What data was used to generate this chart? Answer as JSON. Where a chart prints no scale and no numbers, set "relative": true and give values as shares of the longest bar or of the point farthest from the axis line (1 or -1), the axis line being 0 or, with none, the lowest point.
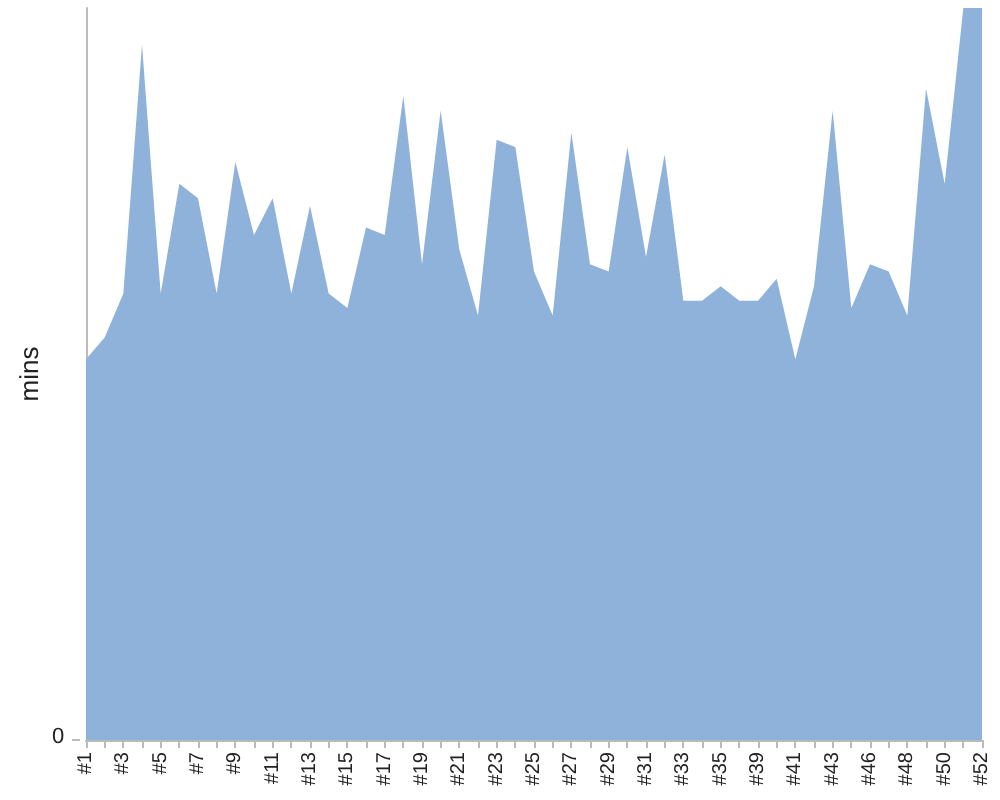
{
  "chart_data": {
    "type": "area",
    "relative": true,
    "ylabel": "mins",
    "annotations": [
      "0"
    ],
    "color": "#8fb2da",
    "grid": false,
    "categories": [
      "#1",
      null,
      "#3",
      null,
      "#5",
      null,
      "#7",
      null,
      "#9",
      null,
      "#11",
      null,
      "#13",
      null,
      "#15",
      null,
      "#17",
      null,
      "#19",
      null,
      "#21",
      null,
      "#23",
      null,
      "#25",
      null,
      "#27",
      null,
      "#29",
      null,
      "#31",
      null,
      "#33",
      null,
      "#35",
      null,
      "#39",
      null,
      "#41",
      null,
      "#43",
      null,
      "#46",
      null,
      "#48",
      null,
      "#50",
      null,
      "#52"
    ],
    "values": [
      0.52,
      0.55,
      0.61,
      0.95,
      0.61,
      0.76,
      0.74,
      0.61,
      0.79,
      0.69,
      0.74,
      0.61,
      0.73,
      0.61,
      0.59,
      0.7,
      0.69,
      0.88,
      0.65,
      0.86,
      0.67,
      0.58,
      0.82,
      0.81,
      0.64,
      0.58,
      0.83,
      0.65,
      0.64,
      0.81,
      0.66,
      0.8,
      0.6,
      0.6,
      0.62,
      0.6,
      0.6,
      0.63,
      0.52,
      0.62,
      0.86,
      0.59,
      0.65,
      0.64,
      0.58,
      0.89,
      0.76,
      1,
      1
    ]
  }
}
